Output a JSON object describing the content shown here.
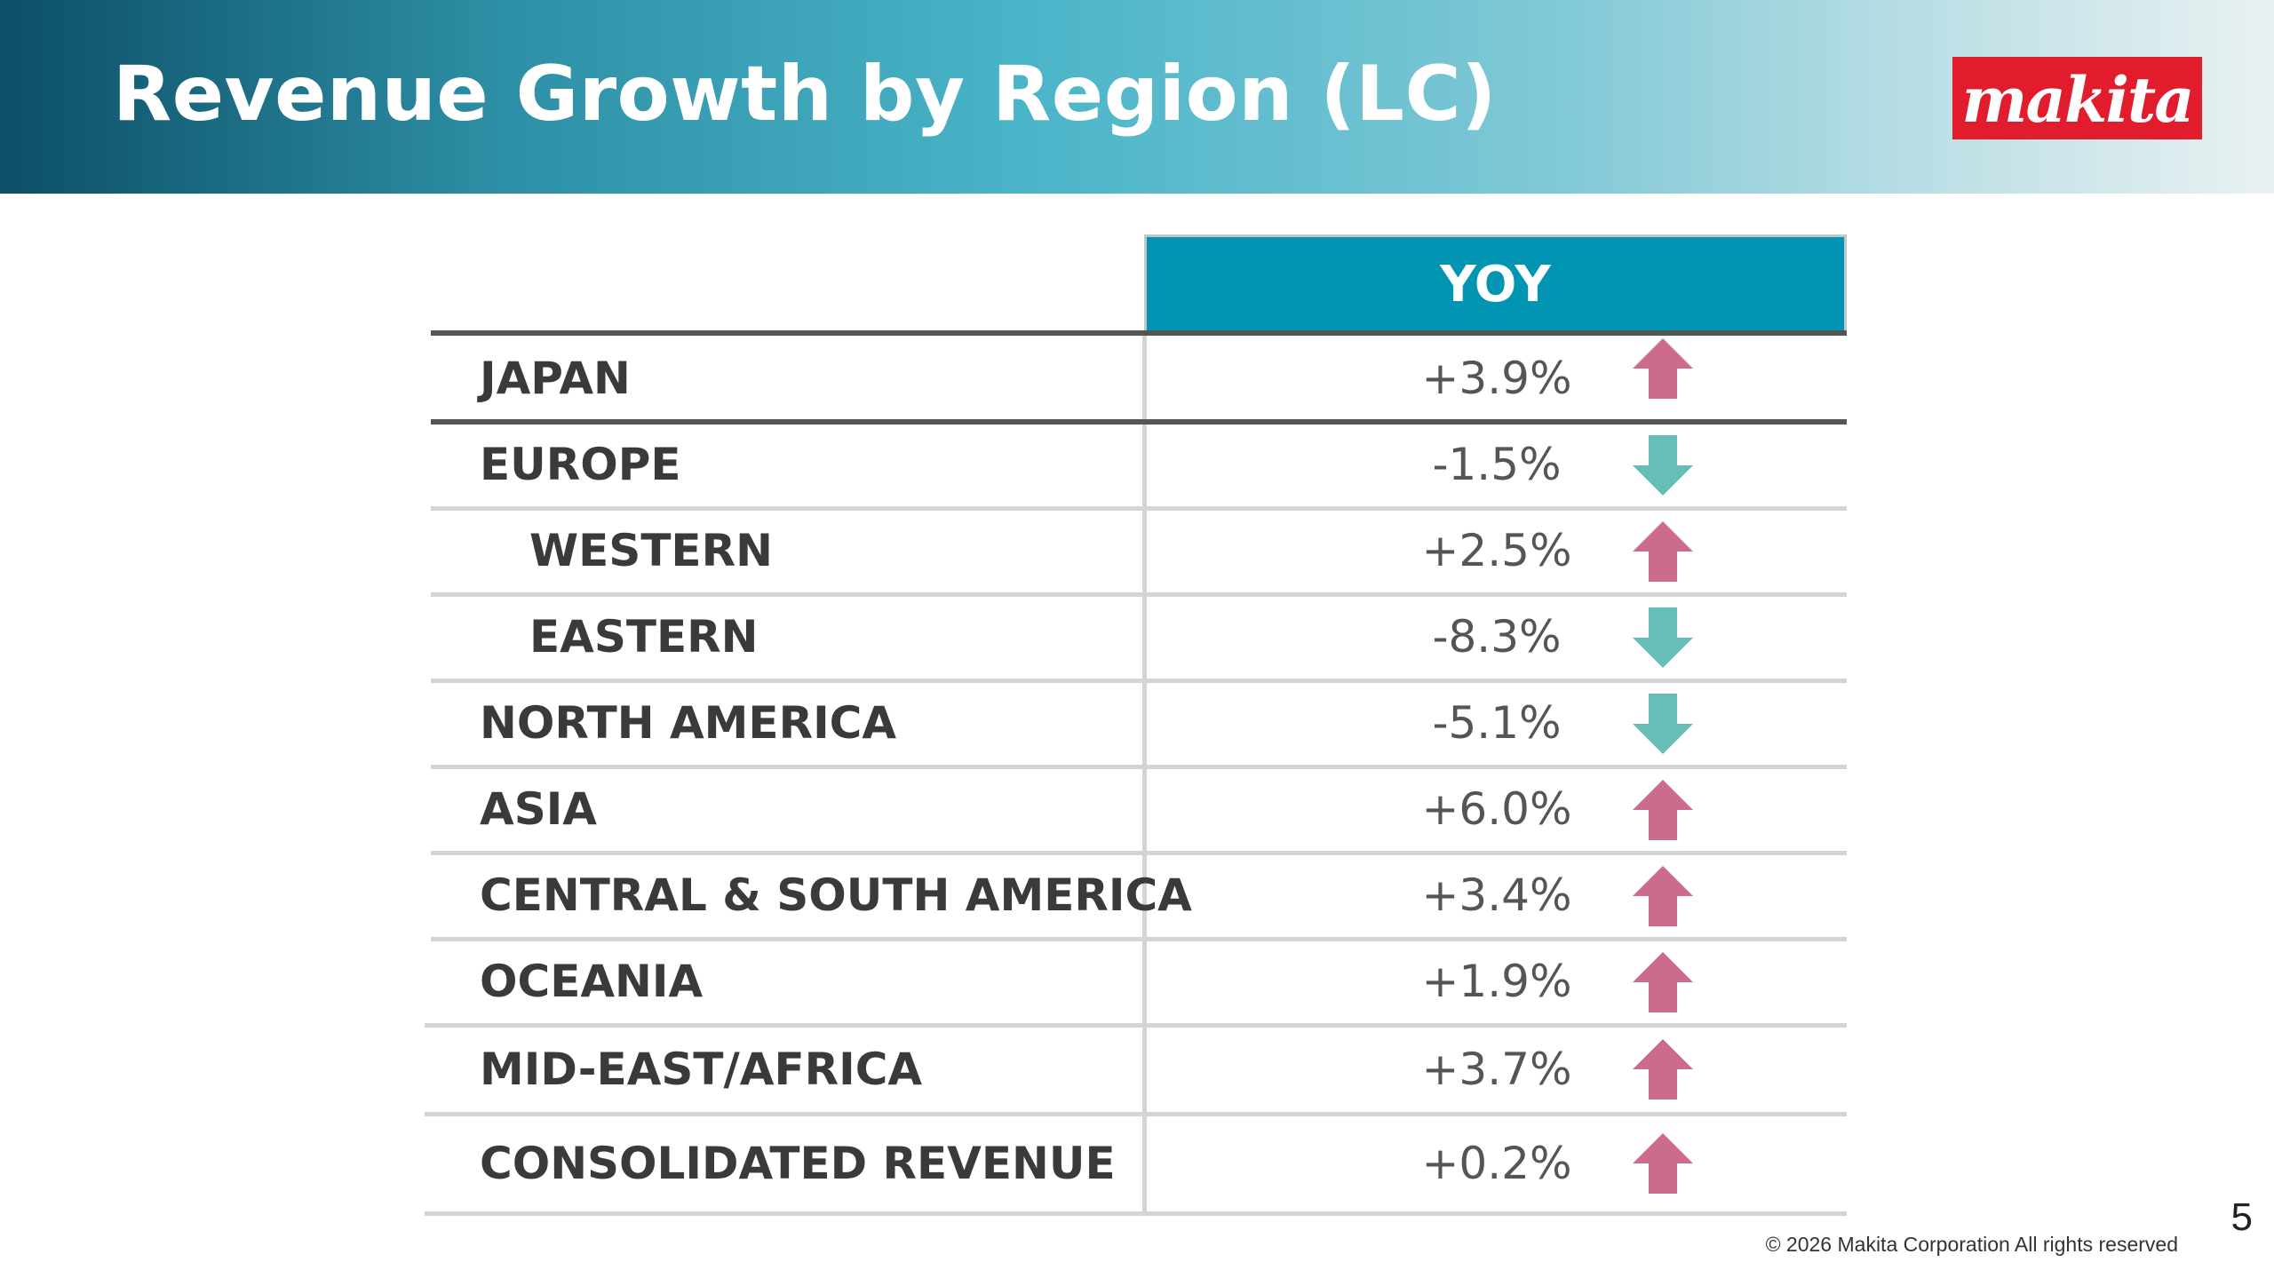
{
  "page": {
    "title": "Revenue Growth by Region (LC)",
    "logo_text": "makita",
    "page_number": "5",
    "copyright": "© 2026  Makita Corporation All rights reserved"
  },
  "colors": {
    "header_start": "#0c4f67",
    "header_end": "#e9f1f2",
    "yoy_header": "#0195b3",
    "up_arrow": "#cc6b8e",
    "down_arrow": "#66bdb9",
    "logo_red": "#e11d2d"
  },
  "table": {
    "column_header": "YOY",
    "rows": [
      {
        "label": "JAPAN",
        "value": "+3.9%",
        "direction": "up",
        "icon": "up-arrow-icon"
      },
      {
        "label": "EUROPE",
        "value": "-1.5%",
        "direction": "down",
        "icon": "down-arrow-icon"
      },
      {
        "label": "WESTERN",
        "value": "+2.5%",
        "direction": "up",
        "icon": "up-arrow-icon",
        "indent": true
      },
      {
        "label": "EASTERN",
        "value": "-8.3%",
        "direction": "down",
        "icon": "down-arrow-icon",
        "indent": true
      },
      {
        "label": "NORTH AMERICA",
        "value": "-5.1%",
        "direction": "down",
        "icon": "down-arrow-icon"
      },
      {
        "label": "ASIA",
        "value": "+6.0%",
        "direction": "up",
        "icon": "up-arrow-icon"
      },
      {
        "label": "CENTRAL & SOUTH AMERICA",
        "value": "+3.4%",
        "direction": "up",
        "icon": "up-arrow-icon"
      },
      {
        "label": "OCEANIA",
        "value": "+1.9%",
        "direction": "up",
        "icon": "up-arrow-icon"
      },
      {
        "label": "MID-EAST/AFRICA",
        "value": "+3.7%",
        "direction": "up",
        "icon": "up-arrow-icon"
      },
      {
        "label": "CONSOLIDATED REVENUE",
        "value": "+0.2%",
        "direction": "up",
        "icon": "up-arrow-icon"
      }
    ]
  }
}
